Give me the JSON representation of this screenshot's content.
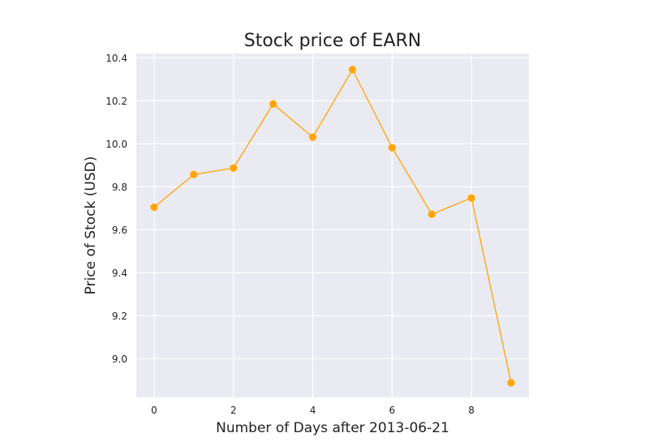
{
  "chart_data": {
    "type": "line",
    "title": "Stock price of EARN",
    "xlabel": "Number of Days after 2013-06-21",
    "ylabel": "Price of Stock (USD)",
    "x": [
      0,
      1,
      2,
      3,
      4,
      5,
      6,
      7,
      8,
      9
    ],
    "series": [
      {
        "values": [
          9.705,
          9.857,
          9.887,
          10.185,
          10.031,
          10.345,
          9.982,
          9.672,
          9.748,
          8.888
        ]
      }
    ],
    "xlim": [
      -0.45,
      9.45
    ],
    "ylim": [
      8.82,
      10.42
    ],
    "xticks": [
      0,
      2,
      4,
      6,
      8
    ],
    "yticks": [
      9.0,
      9.2,
      9.4,
      9.6,
      9.8,
      10.0,
      10.2,
      10.4
    ],
    "xtick_labels": [
      "0",
      "2",
      "4",
      "6",
      "8"
    ],
    "ytick_labels": [
      "9.0",
      "9.2",
      "9.4",
      "9.6",
      "9.8",
      "10.0",
      "10.2",
      "10.4"
    ],
    "grid": true,
    "marker": "circle",
    "colors": {
      "line": "#ffa500",
      "background": "#eaeaf2",
      "grid": "#ffffff"
    }
  }
}
